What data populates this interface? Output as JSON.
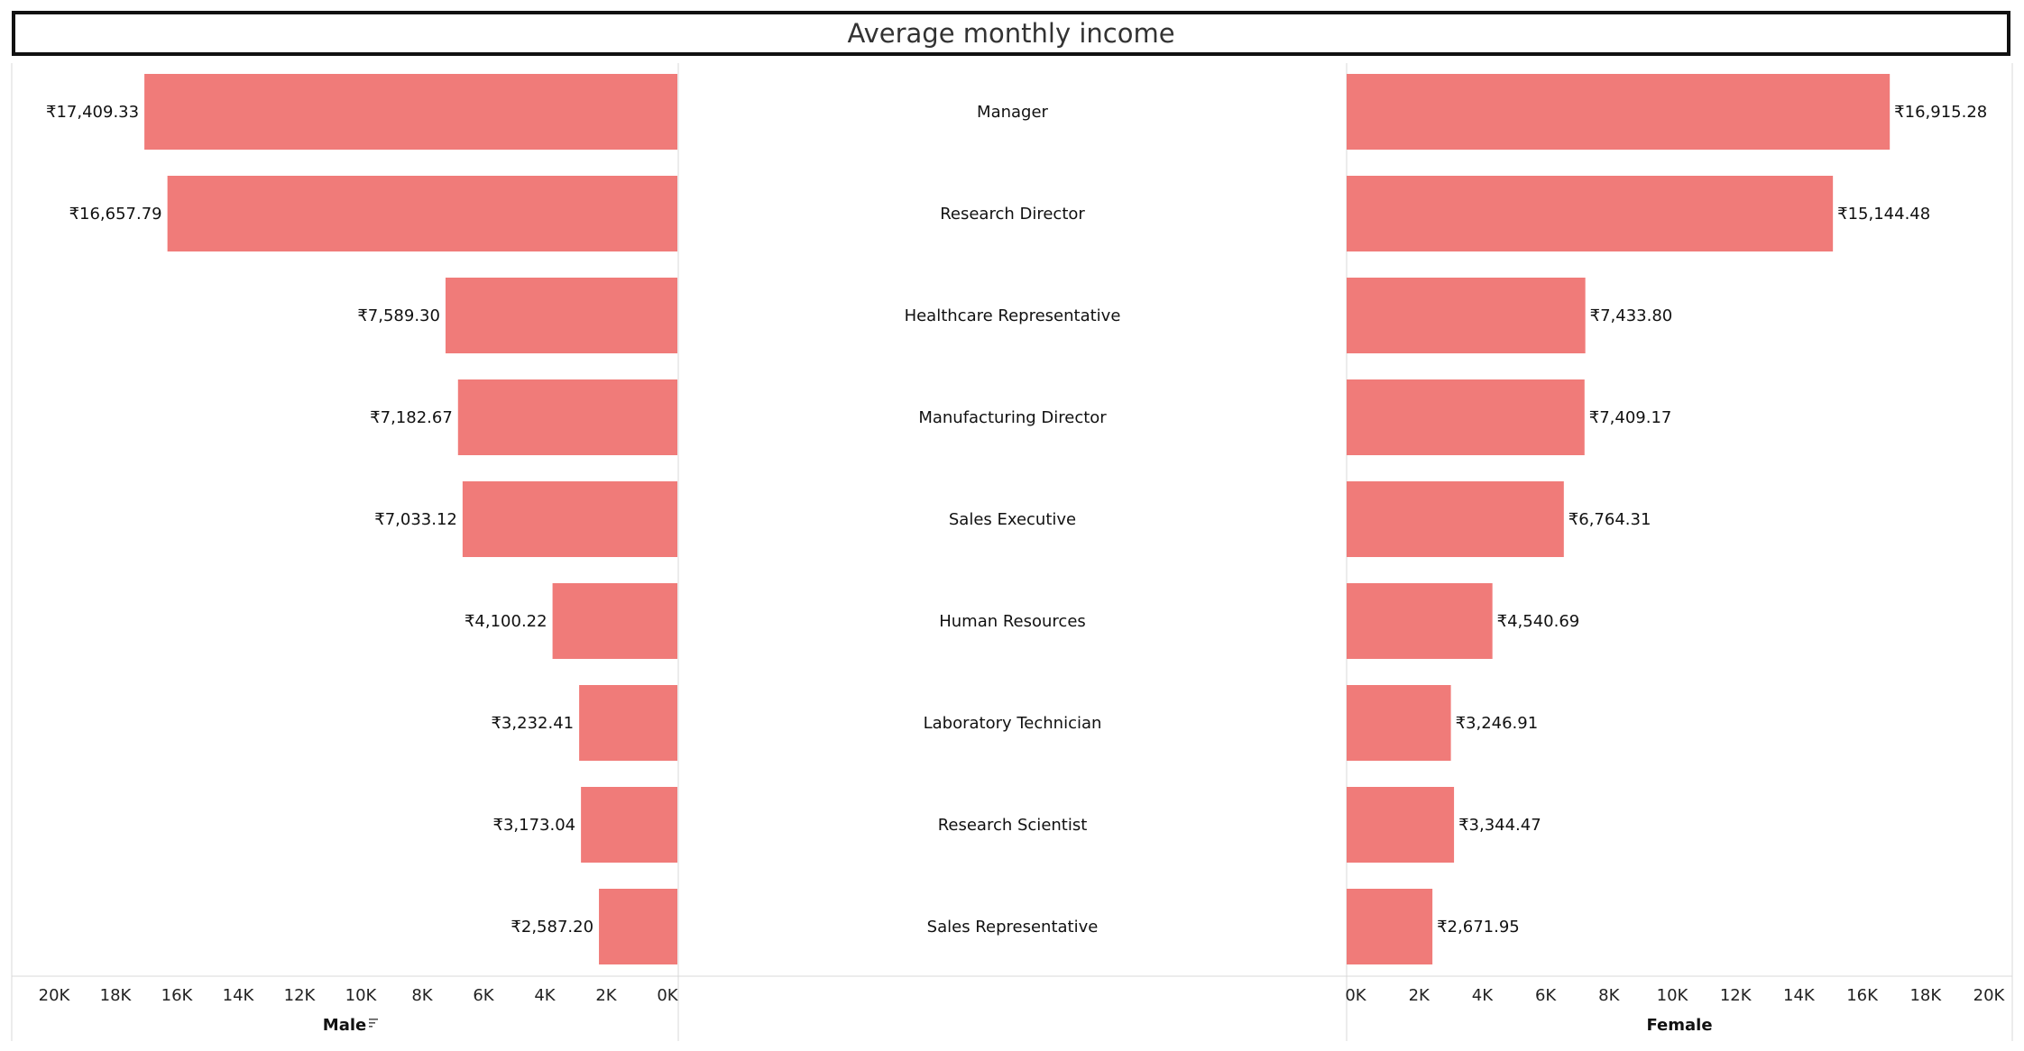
{
  "chart_data": {
    "type": "bar",
    "title": "Average monthly income",
    "categories": [
      "Manager",
      "Research Director",
      "Healthcare Representative",
      "Manufacturing Director",
      "Sales Executive",
      "Human Resources",
      "Laboratory Technician",
      "Research Scientist",
      "Sales Representative"
    ],
    "series": [
      {
        "name": "Male",
        "values": [
          17409.33,
          16657.79,
          7589.3,
          7182.67,
          7033.12,
          4100.22,
          3232.41,
          3173.04,
          2587.2
        ],
        "labels": [
          "₹17,409.33",
          "₹16,657.79",
          "₹7,589.30",
          "₹7,182.67",
          "₹7,033.12",
          "₹4,100.22",
          "₹3,232.41",
          "₹3,173.04",
          "₹2,587.20"
        ]
      },
      {
        "name": "Female",
        "values": [
          16915.28,
          15144.48,
          7433.8,
          7409.17,
          6764.31,
          4540.69,
          3246.91,
          3344.47,
          2671.95
        ],
        "labels": [
          "₹16,915.28",
          "₹15,144.48",
          "₹7,433.80",
          "₹7,409.17",
          "₹6,764.31",
          "₹4,540.69",
          "₹3,246.91",
          "₹3,344.47",
          "₹2,671.95"
        ]
      }
    ],
    "male_axis": {
      "title": "Male",
      "ticks": [
        "20K",
        "18K",
        "16K",
        "14K",
        "12K",
        "10K",
        "8K",
        "6K",
        "4K",
        "2K",
        "0K"
      ],
      "range": [
        20000,
        0
      ],
      "sort_indicator": true
    },
    "female_axis": {
      "title": "Female",
      "ticks": [
        "0K",
        "2K",
        "4K",
        "6K",
        "8K",
        "10K",
        "12K",
        "14K",
        "16K",
        "18K",
        "20K"
      ],
      "range": [
        0,
        20000
      ]
    },
    "bar_color": "#F07B79",
    "grid": false
  }
}
